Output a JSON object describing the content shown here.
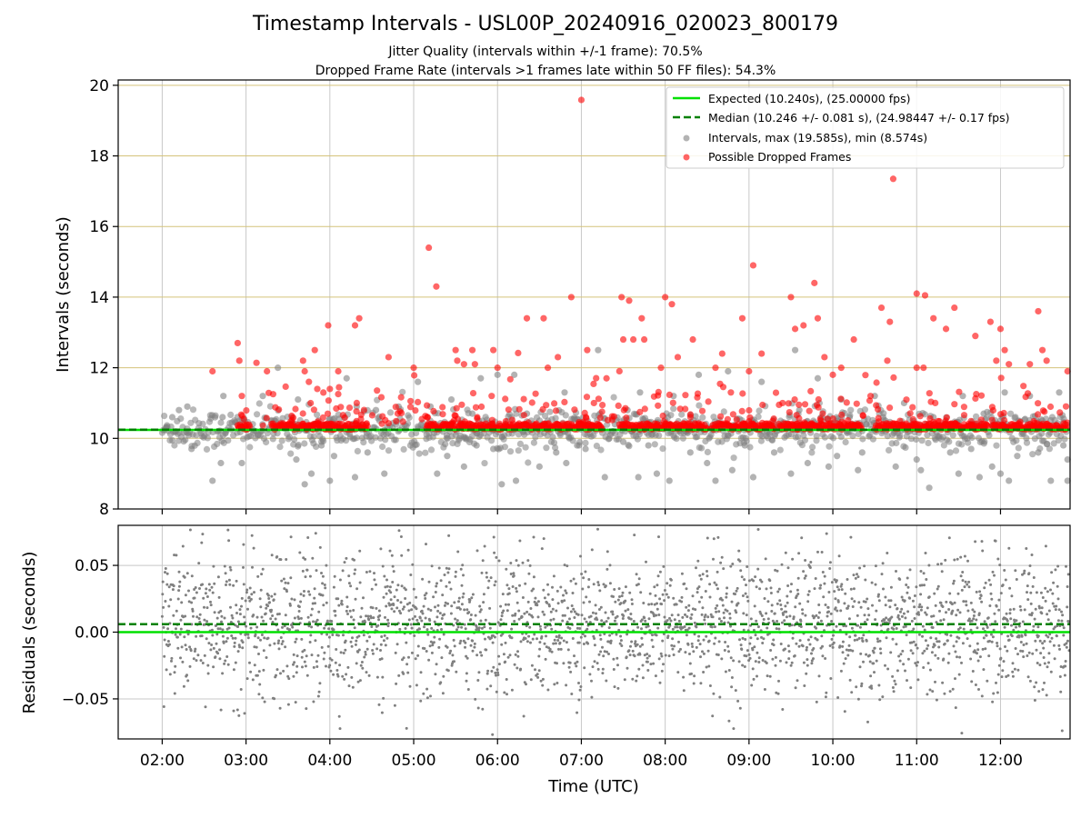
{
  "title": "Timestamp Intervals - USL00P_20240916_020023_800179",
  "subtitle_1": "Jitter Quality (intervals within +/-1 frame): 70.5%",
  "subtitle_2": "Dropped Frame Rate (intervals >1 frames late within 50 FF files): 54.3%",
  "colors": {
    "expected": "#00e000",
    "median": "#008000",
    "intervals": "#808080",
    "dropped": "#ff0000",
    "gridline_top": "#d4c37a",
    "gridline": "#c8c8c8"
  },
  "chart_data": [
    {
      "type": "scatter",
      "panel": "intervals",
      "ylabel": "Intervals (seconds)",
      "ylim": [
        8,
        20
      ],
      "yticks": [
        8,
        10,
        12,
        14,
        16,
        18,
        20
      ],
      "x_range_hours_utc": [
        1.475,
        12.83
      ],
      "grid": true,
      "legend_position": "top-right",
      "legend": [
        "Expected (10.240s), (25.00000 fps)",
        "Median (10.246 +/- 0.081 s), (24.98447 +/- 0.17 fps)",
        "Intervals, max (19.585s), min (8.574s)",
        "Possible Dropped Frames"
      ],
      "expected": 10.24,
      "median": 10.246,
      "series": [
        {
          "name": "Intervals, max (19.585s), min (8.574s)",
          "color": "#808080",
          "description": "gray points scattered mostly between 8.6 and 12.5 s across 02:00-12:50 UTC",
          "points": [
            [
              2.05,
              10.3
            ],
            [
              2.12,
              10.6
            ],
            [
              2.2,
              10.8
            ],
            [
              2.3,
              10.9
            ],
            [
              2.35,
              9.7
            ],
            [
              2.6,
              8.8
            ],
            [
              2.7,
              9.3
            ],
            [
              2.72,
              10.6
            ],
            [
              2.73,
              11.2
            ],
            [
              2.95,
              9.3
            ],
            [
              3.15,
              10.1
            ],
            [
              3.2,
              11.2
            ],
            [
              3.38,
              12.0
            ],
            [
              3.55,
              10.6
            ],
            [
              3.6,
              9.4
            ],
            [
              3.62,
              11.1
            ],
            [
              3.7,
              8.7
            ],
            [
              3.78,
              9.0
            ],
            [
              3.82,
              10.4
            ],
            [
              3.9,
              9.8
            ],
            [
              4.0,
              8.8
            ],
            [
              4.05,
              9.5
            ],
            [
              4.1,
              10.4
            ],
            [
              4.2,
              11.7
            ],
            [
              4.3,
              8.9
            ],
            [
              4.32,
              10.9
            ],
            [
              4.45,
              9.6
            ],
            [
              4.55,
              10.8
            ],
            [
              4.65,
              9.0
            ],
            [
              4.82,
              10.9
            ],
            [
              5.05,
              11.6
            ],
            [
              5.2,
              10.9
            ],
            [
              5.28,
              9.0
            ],
            [
              5.4,
              9.5
            ],
            [
              5.45,
              11.1
            ],
            [
              5.6,
              9.2
            ],
            [
              5.7,
              10.7
            ],
            [
              5.75,
              9.8
            ],
            [
              5.8,
              11.7
            ],
            [
              5.95,
              9.7
            ],
            [
              6.0,
              11.8
            ],
            [
              6.05,
              8.7
            ],
            [
              6.2,
              11.8
            ],
            [
              6.22,
              8.8
            ],
            [
              6.35,
              10.7
            ],
            [
              6.5,
              9.2
            ],
            [
              6.6,
              10.5
            ],
            [
              6.7,
              9.6
            ],
            [
              6.8,
              11.3
            ],
            [
              6.82,
              9.3
            ],
            [
              6.95,
              9.8
            ],
            [
              7.05,
              9.7
            ],
            [
              7.2,
              12.5
            ],
            [
              7.28,
              8.9
            ],
            [
              7.4,
              10.4
            ],
            [
              7.5,
              9.9
            ],
            [
              7.55,
              10.8
            ],
            [
              7.68,
              8.9
            ],
            [
              7.7,
              11.3
            ],
            [
              7.8,
              9.8
            ],
            [
              7.9,
              9.0
            ],
            [
              8.05,
              8.8
            ],
            [
              8.1,
              11.2
            ],
            [
              8.3,
              9.6
            ],
            [
              8.4,
              11.8
            ],
            [
              8.5,
              9.3
            ],
            [
              8.6,
              8.8
            ],
            [
              8.75,
              11.9
            ],
            [
              8.8,
              9.1
            ],
            [
              8.95,
              9.8
            ],
            [
              9.05,
              8.9
            ],
            [
              9.15,
              11.6
            ],
            [
              9.3,
              9.6
            ],
            [
              9.4,
              10.4
            ],
            [
              9.5,
              9.0
            ],
            [
              9.55,
              12.5
            ],
            [
              9.6,
              10.8
            ],
            [
              9.7,
              9.3
            ],
            [
              9.82,
              11.7
            ],
            [
              9.95,
              9.2
            ],
            [
              10.05,
              9.5
            ],
            [
              10.1,
              11.1
            ],
            [
              10.2,
              10.6
            ],
            [
              10.3,
              9.1
            ],
            [
              10.35,
              9.6
            ],
            [
              10.5,
              11.2
            ],
            [
              10.6,
              10.6
            ],
            [
              10.75,
              9.2
            ],
            [
              10.85,
              11.0
            ],
            [
              11.0,
              9.4
            ],
            [
              11.05,
              9.1
            ],
            [
              11.15,
              8.6
            ],
            [
              11.2,
              10.6
            ],
            [
              11.4,
              9.6
            ],
            [
              11.5,
              9.0
            ],
            [
              11.55,
              11.2
            ],
            [
              11.65,
              9.7
            ],
            [
              11.75,
              8.9
            ],
            [
              11.8,
              10.7
            ],
            [
              11.9,
              9.2
            ],
            [
              12.0,
              9.0
            ],
            [
              12.05,
              11.3
            ],
            [
              12.1,
              8.8
            ],
            [
              12.2,
              9.5
            ],
            [
              12.35,
              11.2
            ],
            [
              12.45,
              9.6
            ],
            [
              12.5,
              10.5
            ],
            [
              12.6,
              8.8
            ],
            [
              12.7,
              11.3
            ],
            [
              12.75,
              9.8
            ],
            [
              12.8,
              9.4
            ],
            [
              12.8,
              8.8
            ]
          ]
        },
        {
          "name": "Possible Dropped Frames",
          "color": "#ff0000",
          "description": "red points clustered just above 10.24 s with outliers up to 19.585 s",
          "points": [
            [
              2.6,
              11.9
            ],
            [
              2.9,
              12.7
            ],
            [
              2.92,
              12.2
            ],
            [
              2.95,
              11.2
            ],
            [
              3.25,
              11.9
            ],
            [
              3.68,
              12.2
            ],
            [
              3.7,
              11.9
            ],
            [
              3.75,
              11.6
            ],
            [
              3.82,
              12.5
            ],
            [
              3.85,
              11.4
            ],
            [
              3.98,
              13.2
            ],
            [
              4.0,
              11.4
            ],
            [
              4.1,
              11.9
            ],
            [
              4.3,
              13.2
            ],
            [
              4.35,
              13.4
            ],
            [
              4.7,
              12.3
            ],
            [
              5.0,
              12.0
            ],
            [
              5.18,
              15.4
            ],
            [
              5.27,
              14.3
            ],
            [
              5.5,
              12.5
            ],
            [
              5.52,
              12.2
            ],
            [
              5.6,
              12.1
            ],
            [
              5.7,
              12.5
            ],
            [
              5.73,
              12.1
            ],
            [
              5.93,
              11.2
            ],
            [
              5.95,
              12.5
            ],
            [
              6.0,
              12.0
            ],
            [
              6.35,
              13.4
            ],
            [
              6.55,
              13.4
            ],
            [
              6.6,
              12.0
            ],
            [
              6.72,
              12.3
            ],
            [
              6.88,
              14.0
            ],
            [
              7.0,
              19.585
            ],
            [
              7.07,
              12.5
            ],
            [
              7.15,
              11.0
            ],
            [
              7.3,
              11.7
            ],
            [
              7.48,
              14.0
            ],
            [
              7.5,
              12.8
            ],
            [
              7.57,
              13.9
            ],
            [
              7.62,
              12.8
            ],
            [
              7.72,
              13.4
            ],
            [
              7.75,
              12.8
            ],
            [
              7.95,
              12.0
            ],
            [
              8.0,
              14.0
            ],
            [
              8.08,
              13.8
            ],
            [
              8.15,
              12.3
            ],
            [
              8.33,
              12.8
            ],
            [
              8.6,
              12.0
            ],
            [
              8.68,
              12.4
            ],
            [
              8.92,
              13.4
            ],
            [
              9.0,
              11.9
            ],
            [
              9.05,
              14.9
            ],
            [
              9.15,
              12.4
            ],
            [
              9.4,
              11.0
            ],
            [
              9.5,
              14.0
            ],
            [
              9.55,
              13.1
            ],
            [
              9.65,
              13.2
            ],
            [
              9.78,
              14.4
            ],
            [
              9.82,
              13.4
            ],
            [
              9.9,
              12.3
            ],
            [
              10.0,
              11.8
            ],
            [
              10.1,
              12.0
            ],
            [
              10.25,
              12.8
            ],
            [
              10.45,
              11.2
            ],
            [
              10.58,
              13.7
            ],
            [
              10.65,
              12.2
            ],
            [
              10.68,
              13.3
            ],
            [
              10.72,
              17.35
            ],
            [
              11.0,
              12.0
            ],
            [
              11.0,
              14.1
            ],
            [
              11.1,
              14.05
            ],
            [
              11.2,
              13.4
            ],
            [
              11.35,
              13.1
            ],
            [
              11.45,
              13.7
            ],
            [
              11.7,
              12.9
            ],
            [
              11.88,
              13.3
            ],
            [
              11.95,
              12.2
            ],
            [
              12.0,
              13.1
            ],
            [
              12.05,
              12.5
            ],
            [
              12.1,
              12.1
            ],
            [
              12.35,
              12.1
            ],
            [
              12.45,
              13.6
            ],
            [
              12.5,
              12.5
            ],
            [
              12.55,
              12.2
            ],
            [
              12.8,
              11.9
            ]
          ],
          "cluster_band": {
            "x_start": 2.9,
            "x_end": 12.8,
            "y": 10.3
          }
        }
      ]
    },
    {
      "type": "scatter",
      "panel": "residuals",
      "xlabel": "Time (UTC)",
      "ylabel": "Residuals (seconds)",
      "ylim": [
        -0.08,
        0.08
      ],
      "yticks": [
        -0.05,
        0.0,
        0.05
      ],
      "ytick_labels": [
        "−0.05",
        "0.00",
        "0.05"
      ],
      "x_range_hours_utc": [
        1.475,
        12.83
      ],
      "x_ticks": [
        2,
        3,
        4,
        5,
        6,
        7,
        8,
        9,
        10,
        11,
        12
      ],
      "x_tick_labels": [
        "02:00",
        "03:00",
        "04:00",
        "05:00",
        "06:00",
        "07:00",
        "08:00",
        "09:00",
        "10:00",
        "11:00",
        "12:00"
      ],
      "grid": true,
      "expected_residual": 0.0,
      "median_residual": 0.006,
      "series": [
        {
          "name": "residuals",
          "color": "#808080",
          "description": "dense gray points between about -0.077 and 0.077 s from 02:00 to 12:50 UTC"
        }
      ]
    }
  ]
}
